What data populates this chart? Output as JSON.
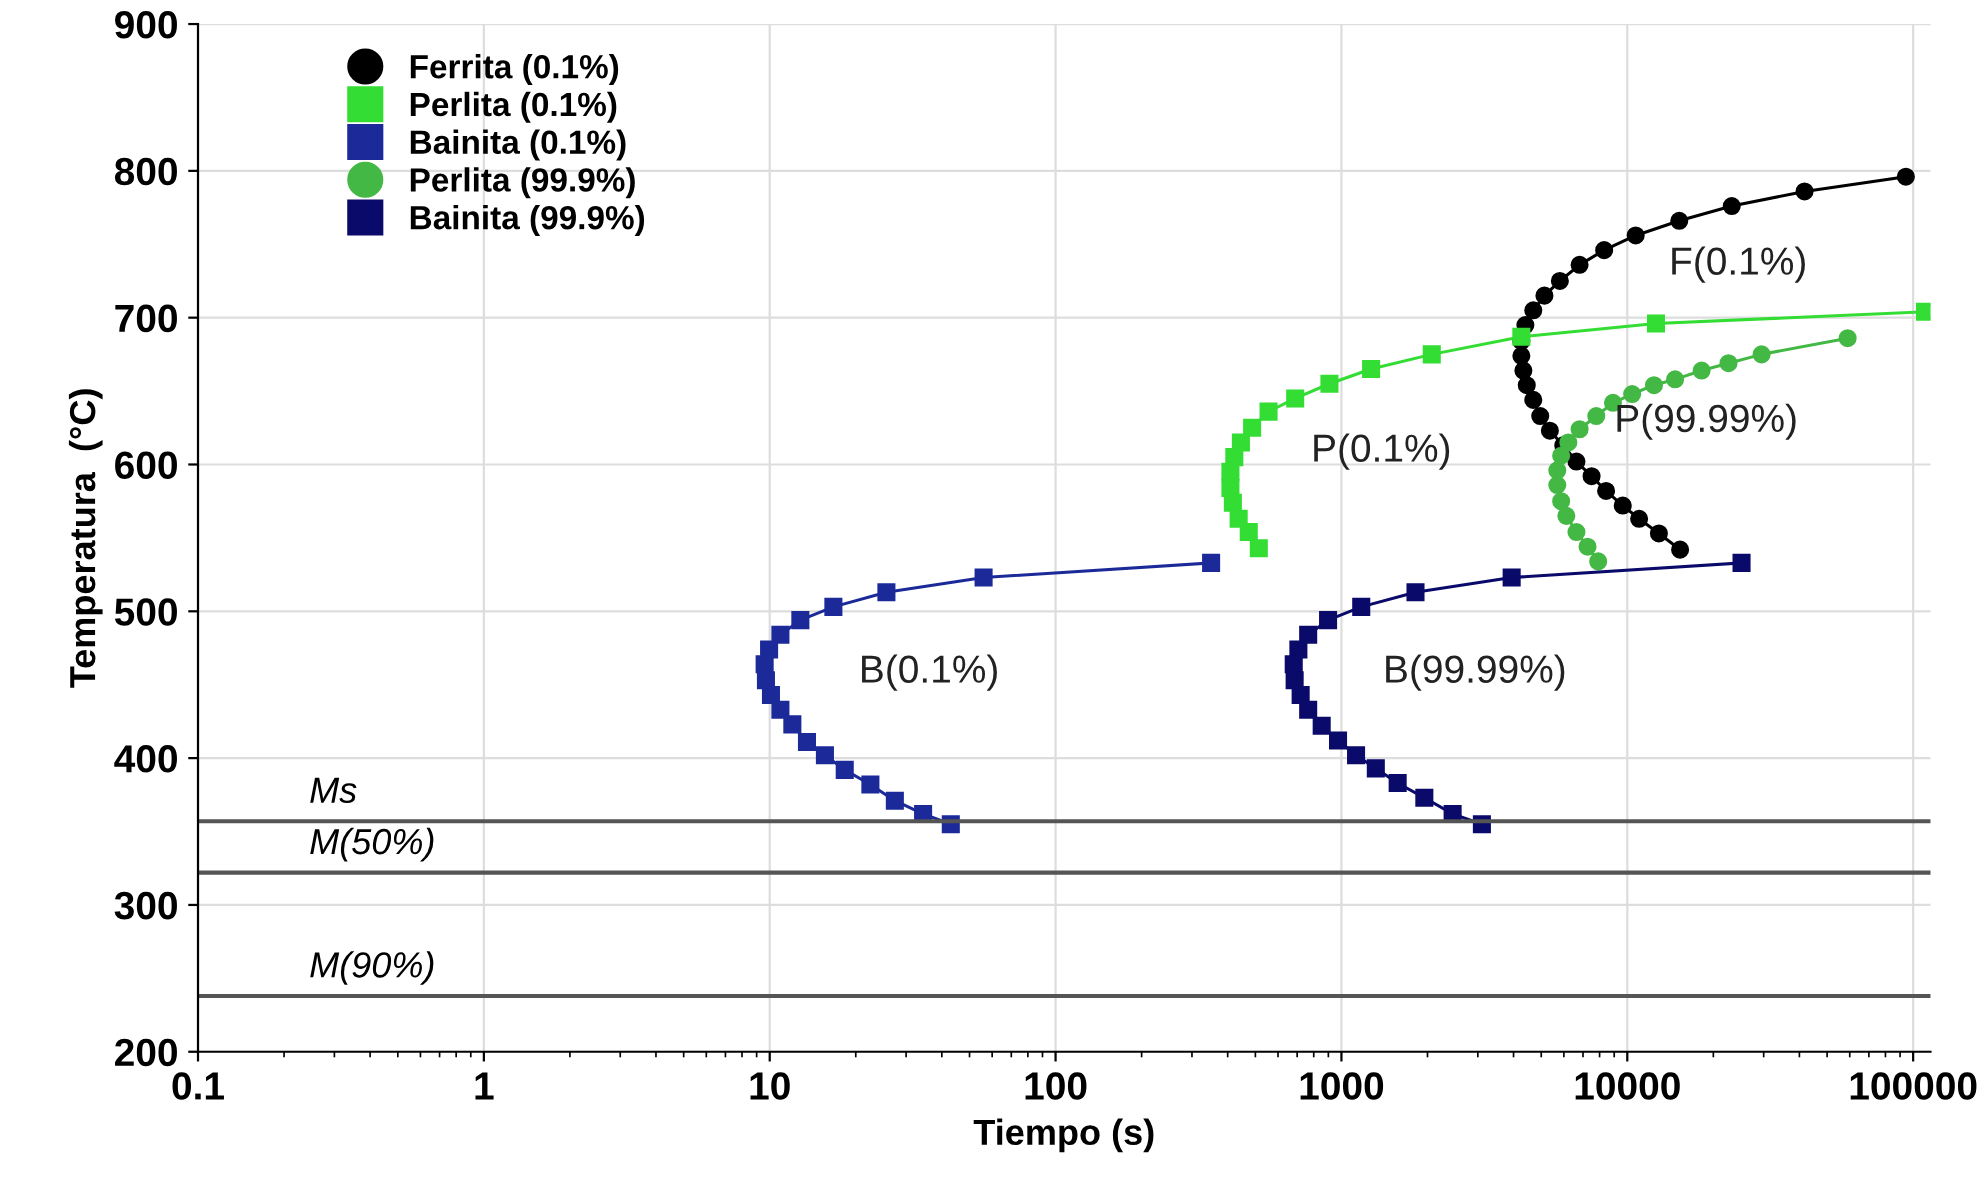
{
  "chart_data": {
    "type": "line",
    "xlabel": "Tiempo (s)",
    "ylabel": "Temperatura  (°C)",
    "log": "x",
    "xlim": [
      0.1,
      115000
    ],
    "xticks": [
      {
        "value": 0.1,
        "label": "0.1"
      },
      1,
      10,
      100,
      1000,
      10000,
      100000
    ],
    "ylim": [
      200,
      900
    ],
    "yticks": [
      200,
      300,
      400,
      500,
      600,
      700,
      800,
      900
    ],
    "grid": true,
    "legend": "top left",
    "line_style": "solid",
    "series": [
      {
        "name": "Ferrita (0.1%)",
        "color": "#000000",
        "marker": "circle",
        "x": [
          94300,
          41700,
          23200,
          15200,
          10700,
          8300,
          6810,
          5810,
          5130,
          4690,
          4400,
          4260,
          4260,
          4330,
          4450,
          4690,
          4960,
          5360,
          5970,
          6640,
          7500,
          8430,
          9640,
          11000,
          12900,
          15300
        ],
        "values": [
          796,
          786,
          776,
          766,
          756,
          746,
          736,
          725,
          715,
          705,
          695,
          684,
          674,
          664,
          654,
          644,
          633,
          623,
          613,
          602,
          592,
          582,
          572,
          563,
          553,
          542
        ]
      },
      {
        "name": "Perlita (0.1%)",
        "color": "#33dd33",
        "marker": "square",
        "x": [
          110000,
          12600,
          4260,
          2070,
          1270,
          908,
          689,
          556,
          487,
          445,
          422,
          409,
          409,
          417,
          437,
          474,
          514
        ],
        "values": [
          704,
          696,
          687,
          675,
          665,
          655,
          645,
          636,
          625,
          615,
          605,
          595,
          584,
          574,
          563,
          554,
          543
        ]
      },
      {
        "name": "Bainita (0.1%)",
        "color": "#1c2a99",
        "marker": "square",
        "x": [
          350,
          56,
          25.6,
          16.7,
          12.8,
          10.9,
          9.95,
          9.6,
          9.7,
          10.1,
          10.9,
          12.0,
          13.5,
          15.6,
          18.3,
          22.5,
          27.4,
          34.4,
          43
        ],
        "values": [
          533,
          523,
          513,
          503,
          494,
          484,
          474,
          464,
          453,
          443,
          433,
          423,
          411,
          402,
          392,
          382,
          371,
          362,
          355
        ]
      },
      {
        "name": "Perlita (99.9%)",
        "color": "#44b844",
        "marker": "circle",
        "x": [
          59000,
          29500,
          22600,
          18200,
          14700,
          12400,
          10400,
          8910,
          7790,
          6810,
          6220,
          5870,
          5690,
          5690,
          5870,
          6120,
          6640,
          7260,
          7910
        ],
        "values": [
          686,
          675,
          669,
          664,
          658,
          654,
          648,
          642,
          633,
          624,
          615,
          606,
          596,
          586,
          575,
          565,
          554,
          544,
          534
        ]
      },
      {
        "name": "Bainita (99.9%)",
        "color": "#0a0a6a",
        "marker": "square",
        "x": [
          25100,
          3940,
          1816,
          1173,
          898,
          765,
          707,
          681,
          686,
          720,
          765,
          853,
          973,
          1125,
          1319,
          1573,
          1950,
          2449,
          3100
        ],
        "values": [
          533,
          523,
          513,
          503,
          494,
          484,
          474,
          464,
          453,
          443,
          433,
          422,
          412,
          402,
          393,
          383,
          373,
          362,
          355
        ]
      }
    ],
    "ref_lines": [
      {
        "axis": "y",
        "value": 357,
        "label": "Ms",
        "color": "#555555"
      },
      {
        "axis": "y",
        "value": 322,
        "label": "M(50%)",
        "color": "#555555"
      },
      {
        "axis": "y",
        "value": 238,
        "label": "M(90%)",
        "color": "#555555"
      }
    ],
    "annotations": [
      "F(0.1%)",
      "P(0.1%)",
      "P(99.99%)",
      "B(0.1%)",
      "B(99.99%)"
    ]
  }
}
